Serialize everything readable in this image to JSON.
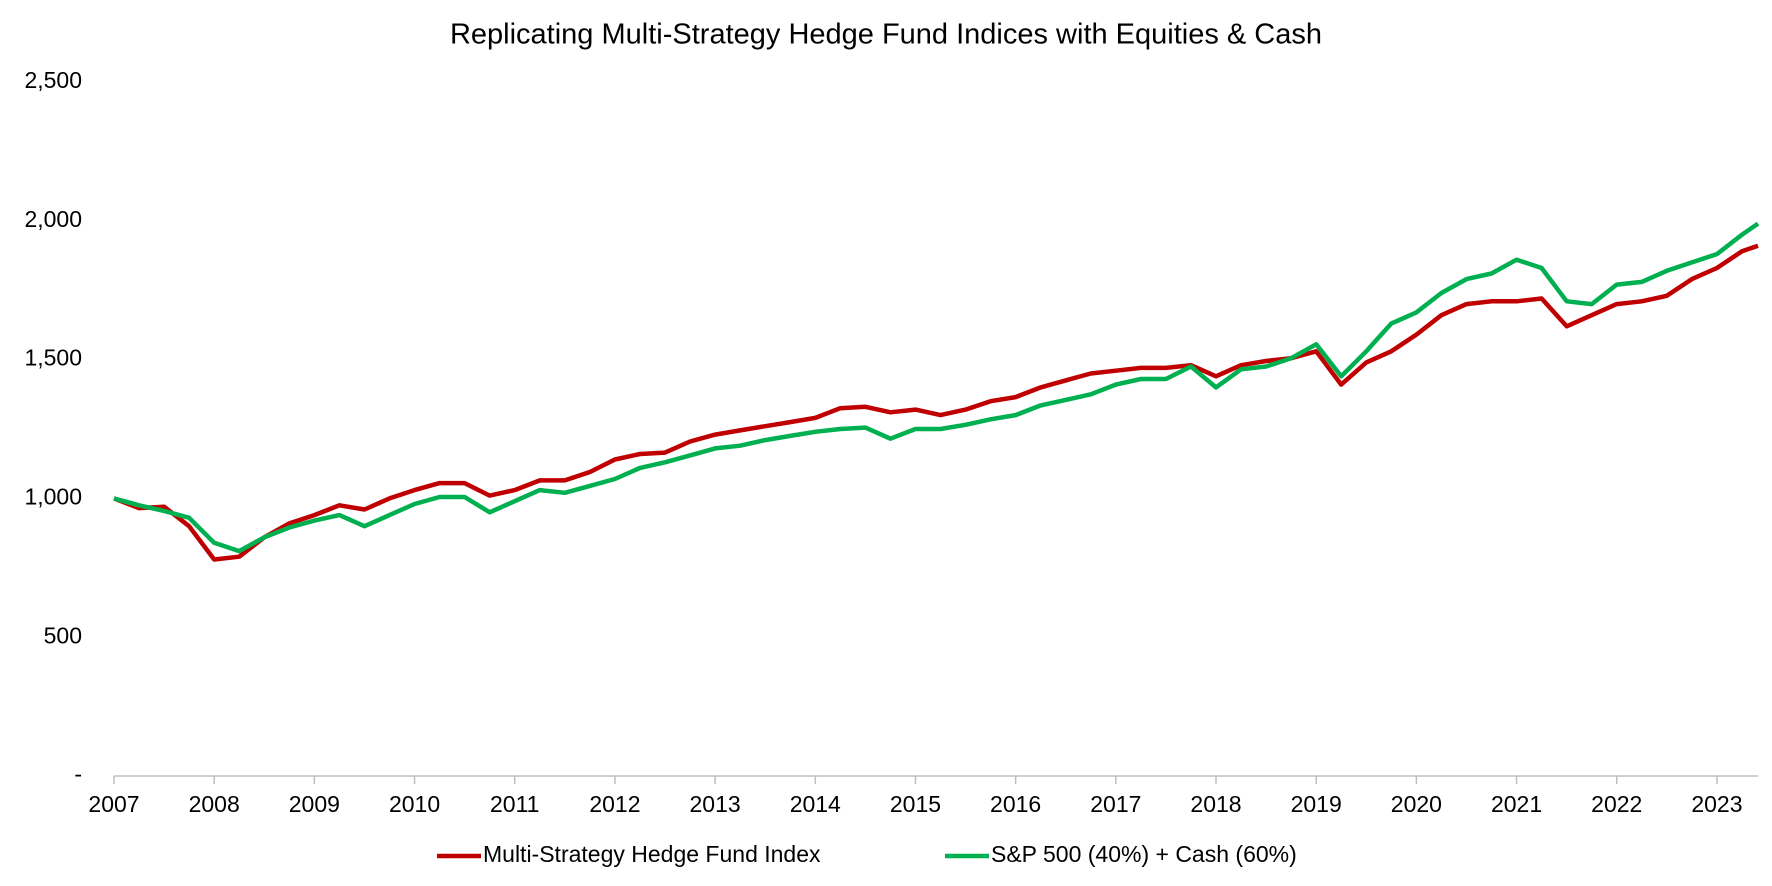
{
  "chart_data": {
    "type": "line",
    "title": "Replicating Multi-Strategy Hedge Fund Indices with Equities & Cash",
    "x": [
      2007,
      2007.25,
      2007.5,
      2007.75,
      2008,
      2008.25,
      2008.5,
      2008.75,
      2009,
      2009.25,
      2009.5,
      2009.75,
      2010,
      2010.25,
      2010.5,
      2010.75,
      2011,
      2011.25,
      2011.5,
      2011.75,
      2012,
      2012.25,
      2012.5,
      2012.75,
      2013,
      2013.25,
      2013.5,
      2013.75,
      2014,
      2014.25,
      2014.5,
      2014.75,
      2015,
      2015.25,
      2015.5,
      2015.75,
      2016,
      2016.25,
      2016.5,
      2016.75,
      2017,
      2017.25,
      2017.5,
      2017.75,
      2018,
      2018.25,
      2018.5,
      2018.75,
      2019,
      2019.25,
      2019.5,
      2019.75,
      2020,
      2020.25,
      2020.5,
      2020.75,
      2021,
      2021.25,
      2021.5,
      2021.75,
      2022,
      2022.25,
      2022.5,
      2022.75,
      2023,
      2023.25,
      2023.41
    ],
    "series": [
      {
        "name": "Multi-Strategy Hedge Fund Index",
        "color": "#c00000",
        "values": [
          1000,
          965,
          970,
          900,
          780,
          790,
          860,
          910,
          940,
          975,
          960,
          1000,
          1030,
          1055,
          1055,
          1010,
          1030,
          1065,
          1065,
          1095,
          1140,
          1160,
          1165,
          1205,
          1230,
          1245,
          1260,
          1275,
          1290,
          1325,
          1330,
          1310,
          1320,
          1300,
          1320,
          1350,
          1365,
          1400,
          1425,
          1450,
          1460,
          1470,
          1470,
          1480,
          1440,
          1480,
          1495,
          1505,
          1530,
          1410,
          1490,
          1530,
          1590,
          1660,
          1700,
          1710,
          1710,
          1720,
          1620,
          1660,
          1700,
          1710,
          1730,
          1790,
          1830,
          1890,
          1910
        ]
      },
      {
        "name": "S&P 500 (40%) + Cash (60%)",
        "color": "#00b050",
        "values": [
          1000,
          975,
          955,
          930,
          840,
          810,
          860,
          895,
          920,
          940,
          900,
          940,
          980,
          1005,
          1005,
          950,
          990,
          1030,
          1020,
          1045,
          1070,
          1110,
          1130,
          1155,
          1180,
          1190,
          1210,
          1225,
          1240,
          1250,
          1255,
          1215,
          1250,
          1250,
          1265,
          1285,
          1300,
          1335,
          1355,
          1375,
          1410,
          1430,
          1430,
          1475,
          1400,
          1465,
          1475,
          1505,
          1555,
          1440,
          1530,
          1630,
          1670,
          1740,
          1790,
          1810,
          1860,
          1830,
          1710,
          1700,
          1770,
          1780,
          1820,
          1850,
          1880,
          1950,
          1990
        ]
      }
    ],
    "xlim": [
      2007,
      2023.41
    ],
    "xticks": [
      2007,
      2008,
      2009,
      2010,
      2011,
      2012,
      2013,
      2014,
      2015,
      2016,
      2017,
      2018,
      2019,
      2020,
      2021,
      2022,
      2023
    ],
    "ylim": [
      0,
      2500
    ],
    "yticks": [
      {
        "value": 0,
        "label": "-"
      },
      500,
      {
        "value": 1000,
        "label": "1,000"
      },
      {
        "value": 1500,
        "label": "1,500"
      },
      {
        "value": 2000,
        "label": "2,000"
      },
      {
        "value": 2500,
        "label": "2,500"
      }
    ],
    "grid": false,
    "legend": "bottom"
  }
}
